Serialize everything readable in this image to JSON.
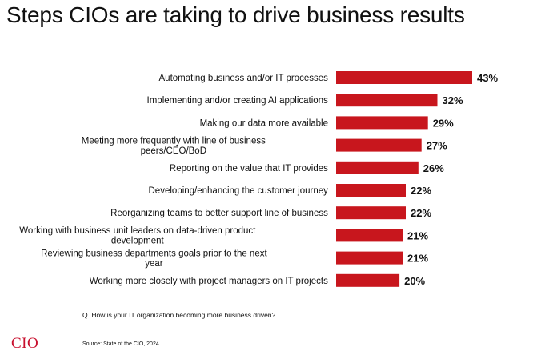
{
  "chart_data": {
    "type": "bar",
    "orientation": "horizontal",
    "title": "Steps CIOs are taking to drive business results",
    "categories": [
      [
        "Automating business and/or IT processes"
      ],
      [
        "Implementing and/or creating AI applications"
      ],
      [
        "Making our data more available"
      ],
      [
        "Meeting more frequently with line of business",
        "peers/CEO/BoD"
      ],
      [
        "Reporting on the value that IT provides"
      ],
      [
        "Developing/enhancing the customer journey"
      ],
      [
        "Reorganizing teams to better support line of business"
      ],
      [
        "Working with business unit leaders on data-driven product",
        "development"
      ],
      [
        "Reviewing business departments goals prior to the next",
        "year"
      ],
      [
        "Working more closely with project managers on IT projects"
      ]
    ],
    "values": [
      43,
      32,
      29,
      27,
      26,
      22,
      22,
      21,
      21,
      20
    ],
    "value_labels": [
      "43%",
      "32%",
      "29%",
      "27%",
      "26%",
      "22%",
      "22%",
      "21%",
      "21%",
      "20%"
    ],
    "bar_color": "#c8161d",
    "xlim": [
      0,
      43
    ],
    "grid": false,
    "legend": "none"
  },
  "question": "Q. How is your IT organization becoming more business driven?",
  "source": "Source: State of the CIO, 2024",
  "logo_text": "CIO",
  "brand_color": "#c8102e"
}
